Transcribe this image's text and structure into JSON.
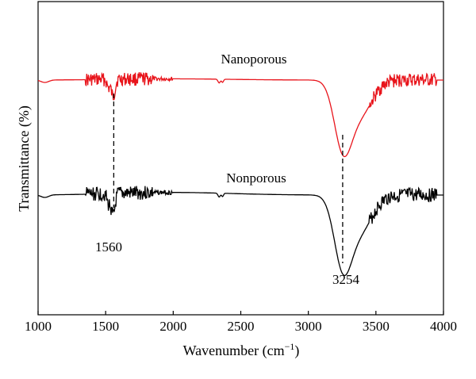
{
  "chart_data": {
    "type": "line",
    "xlabel": "Wavenumber (cm",
    "xlabel_sup": "−1",
    "xlabel_suffix": ")",
    "ylabel": "Transmittance (%)",
    "xlim": [
      1000,
      4000
    ],
    "x_ticks": [
      1000,
      1500,
      2000,
      2500,
      3000,
      3500,
      4000
    ],
    "y_ticks_shown": false,
    "grid": false,
    "series": [
      {
        "name": "Nanoporous",
        "color": "#e8141b",
        "baseline": 100,
        "peaks": [
          {
            "x": 1560,
            "value": 88
          },
          {
            "x": 3254,
            "value": 54
          }
        ]
      },
      {
        "name": "Nonporous",
        "color": "#000000",
        "baseline": 56,
        "peaks": [
          {
            "x": 1560,
            "value": 44
          },
          {
            "x": 3254,
            "value": 0
          }
        ]
      }
    ],
    "annotations": [
      {
        "text": "1560",
        "x": 1560
      },
      {
        "text": "3254",
        "x": 3254
      }
    ]
  }
}
